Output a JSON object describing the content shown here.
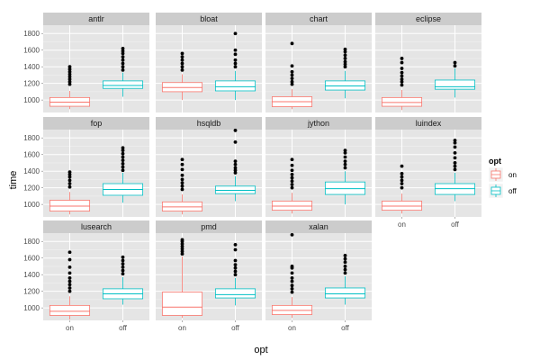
{
  "chart_data": {
    "type": "boxplot",
    "facet_cols": 4,
    "categories": [
      "on",
      "off"
    ],
    "xlabel": "opt",
    "ylabel": "time",
    "ylim": [
      850,
      1900
    ],
    "yticks": [
      1000,
      1200,
      1400,
      1600,
      1800
    ],
    "legend": {
      "title": "opt",
      "placement": "right",
      "entries": [
        {
          "label": "on",
          "color": "#F8766D"
        },
        {
          "label": "off",
          "color": "#00BFC4"
        }
      ]
    },
    "colors": {
      "on": "#F8766D",
      "off": "#00BFC4",
      "panel_bg": "#E5E5E5",
      "strip_bg": "#CCCCCC",
      "grid": "#FFFFFF"
    },
    "panels": [
      {
        "name": "antlr",
        "boxes": [
          {
            "group": "on",
            "min": 890,
            "q1": 925,
            "median": 975,
            "q3": 1030,
            "max": 1110,
            "outliers": [
              1190,
              1220,
              1250,
              1280,
              1310,
              1340,
              1370,
              1400
            ]
          },
          {
            "group": "off",
            "min": 1040,
            "q1": 1140,
            "median": 1175,
            "q3": 1230,
            "max": 1330,
            "outliers": [
              1360,
              1400,
              1440,
              1480,
              1520,
              1560,
              1590,
              1620
            ]
          }
        ]
      },
      {
        "name": "bloat",
        "boxes": [
          {
            "group": "on",
            "min": 1000,
            "q1": 1100,
            "median": 1150,
            "q3": 1210,
            "max": 1310,
            "outliers": [
              1360,
              1400,
              1440,
              1480,
              1520,
              1560
            ]
          },
          {
            "group": "off",
            "min": 1000,
            "q1": 1110,
            "median": 1160,
            "q3": 1230,
            "max": 1350,
            "outliers": [
              1400,
              1440,
              1480,
              1550,
              1600,
              1800
            ]
          }
        ]
      },
      {
        "name": "chart",
        "boxes": [
          {
            "group": "on",
            "min": 890,
            "q1": 920,
            "median": 980,
            "q3": 1040,
            "max": 1130,
            "outliers": [
              1190,
              1220,
              1260,
              1300,
              1340,
              1410,
              1680
            ]
          },
          {
            "group": "off",
            "min": 1020,
            "q1": 1120,
            "median": 1170,
            "q3": 1230,
            "max": 1350,
            "outliers": [
              1400,
              1430,
              1460,
              1500,
              1540,
              1580,
              1610
            ]
          }
        ]
      },
      {
        "name": "eclipse",
        "boxes": [
          {
            "group": "on",
            "min": 880,
            "q1": 925,
            "median": 970,
            "q3": 1030,
            "max": 1120,
            "outliers": [
              1180,
              1220,
              1250,
              1290,
              1330,
              1380,
              1450,
              1500
            ]
          },
          {
            "group": "off",
            "min": 1030,
            "q1": 1130,
            "median": 1160,
            "q3": 1240,
            "max": 1380,
            "outliers": [
              1410,
              1450
            ]
          }
        ]
      },
      {
        "name": "fop",
        "boxes": [
          {
            "group": "on",
            "min": 880,
            "q1": 920,
            "median": 980,
            "q3": 1050,
            "max": 1150,
            "outliers": [
              1210,
              1250,
              1290,
              1330,
              1360,
              1390
            ]
          },
          {
            "group": "off",
            "min": 1020,
            "q1": 1110,
            "median": 1180,
            "q3": 1250,
            "max": 1380,
            "outliers": [
              1410,
              1450,
              1490,
              1530,
              1570,
              1610,
              1650,
              1680
            ]
          }
        ]
      },
      {
        "name": "hsqldb",
        "boxes": [
          {
            "group": "on",
            "min": 880,
            "q1": 920,
            "median": 970,
            "q3": 1030,
            "max": 1120,
            "outliers": [
              1180,
              1220,
              1260,
              1300,
              1350,
              1420,
              1480,
              1540
            ]
          },
          {
            "group": "off",
            "min": 1040,
            "q1": 1130,
            "median": 1170,
            "q3": 1220,
            "max": 1340,
            "outliers": [
              1380,
              1410,
              1440,
              1480,
              1520,
              1750,
              1890
            ]
          }
        ]
      },
      {
        "name": "jython",
        "boxes": [
          {
            "group": "on",
            "min": 890,
            "q1": 930,
            "median": 980,
            "q3": 1040,
            "max": 1140,
            "outliers": [
              1200,
              1240,
              1280,
              1320,
              1360,
              1410,
              1470,
              1540
            ]
          },
          {
            "group": "off",
            "min": 1000,
            "q1": 1120,
            "median": 1190,
            "q3": 1270,
            "max": 1400,
            "outliers": [
              1440,
              1480,
              1520,
              1570,
              1620,
              1650
            ]
          }
        ]
      },
      {
        "name": "luindex",
        "boxes": [
          {
            "group": "on",
            "min": 890,
            "q1": 930,
            "median": 980,
            "q3": 1040,
            "max": 1130,
            "outliers": [
              1200,
              1250,
              1290,
              1330,
              1370,
              1460
            ]
          },
          {
            "group": "off",
            "min": 1040,
            "q1": 1120,
            "median": 1190,
            "q3": 1250,
            "max": 1380,
            "outliers": [
              1420,
              1460,
              1500,
              1560,
              1620,
              1690,
              1740,
              1770
            ]
          }
        ]
      },
      {
        "name": "lusearch",
        "boxes": [
          {
            "group": "on",
            "min": 860,
            "q1": 910,
            "median": 960,
            "q3": 1030,
            "max": 1140,
            "outliers": [
              1200,
              1240,
              1280,
              1320,
              1360,
              1420,
              1490,
              1580,
              1670
            ]
          },
          {
            "group": "off",
            "min": 1040,
            "q1": 1110,
            "median": 1170,
            "q3": 1230,
            "max": 1370,
            "outliers": [
              1410,
              1450,
              1490,
              1530,
              1570,
              1610
            ]
          }
        ]
      },
      {
        "name": "pmd",
        "boxes": [
          {
            "group": "on",
            "min": 880,
            "q1": 910,
            "median": 1010,
            "q3": 1190,
            "max": 1620,
            "outliers": [
              1650,
              1680,
              1710,
              1740,
              1770,
              1800,
              1820
            ]
          },
          {
            "group": "off",
            "min": 1030,
            "q1": 1120,
            "median": 1160,
            "q3": 1230,
            "max": 1360,
            "outliers": [
              1400,
              1440,
              1480,
              1520,
              1570,
              1700,
              1760
            ]
          }
        ]
      },
      {
        "name": "xalan",
        "boxes": [
          {
            "group": "on",
            "min": 880,
            "q1": 920,
            "median": 970,
            "q3": 1030,
            "max": 1130,
            "outliers": [
              1190,
              1230,
              1270,
              1320,
              1360,
              1420,
              1480,
              1500,
              1880
            ]
          },
          {
            "group": "off",
            "min": 1040,
            "q1": 1120,
            "median": 1170,
            "q3": 1240,
            "max": 1380,
            "outliers": [
              1420,
              1460,
              1500,
              1550,
              1590,
              1630
            ]
          }
        ]
      }
    ]
  }
}
